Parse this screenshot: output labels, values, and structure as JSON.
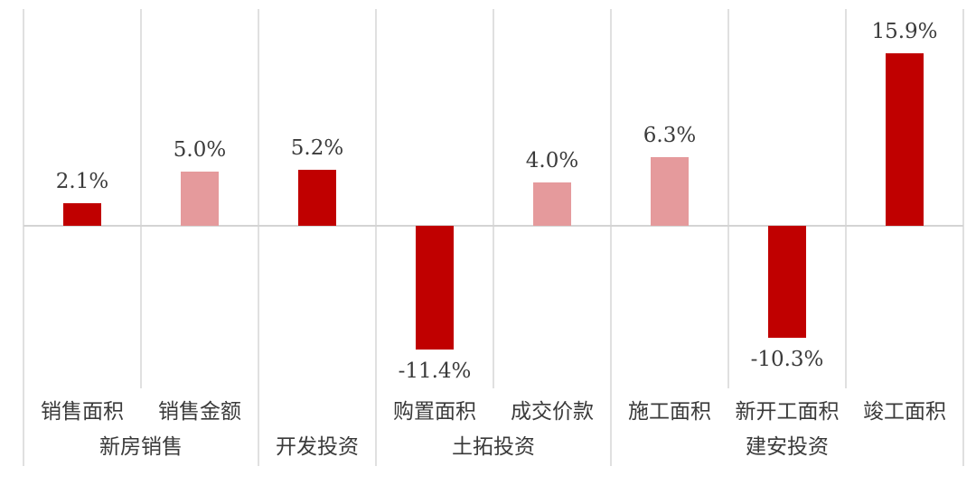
{
  "chart_data": {
    "type": "bar",
    "title": "",
    "value_unit": "%",
    "ylim": [
      -20,
      20
    ],
    "legend_position": "none",
    "grid": "vertical category separators; group separators extend through label tiers; horizontal zero axis line",
    "colors": {
      "dark_red": "#c00000",
      "light_red": "#e59a9c",
      "text": "#3a3a3a",
      "gridline": "#e0e0e0",
      "zero_line": "#d4d4d4"
    },
    "groups": [
      {
        "label": "新房销售",
        "bars": [
          {
            "category": "销售面积",
            "value": 2.1,
            "value_label": "2.1%",
            "color": "dark_red"
          },
          {
            "category": "销售金额",
            "value": 5.0,
            "value_label": "5.0%",
            "color": "light_red"
          }
        ]
      },
      {
        "label": "开发投资",
        "bars": [
          {
            "category": "",
            "value": 5.2,
            "value_label": "5.2%",
            "color": "dark_red"
          }
        ]
      },
      {
        "label": "土拓投资",
        "bars": [
          {
            "category": "购置面积",
            "value": -11.4,
            "value_label": "-11.4%",
            "color": "dark_red"
          },
          {
            "category": "成交价款",
            "value": 4.0,
            "value_label": "4.0%",
            "color": "light_red"
          }
        ]
      },
      {
        "label": "建安投资",
        "bars": [
          {
            "category": "施工面积",
            "value": 6.3,
            "value_label": "6.3%",
            "color": "light_red"
          },
          {
            "category": "新开工面积",
            "value": -10.3,
            "value_label": "-10.3%",
            "color": "dark_red"
          },
          {
            "category": "竣工面积",
            "value": 15.9,
            "value_label": "15.9%",
            "color": "dark_red"
          }
        ]
      }
    ]
  }
}
